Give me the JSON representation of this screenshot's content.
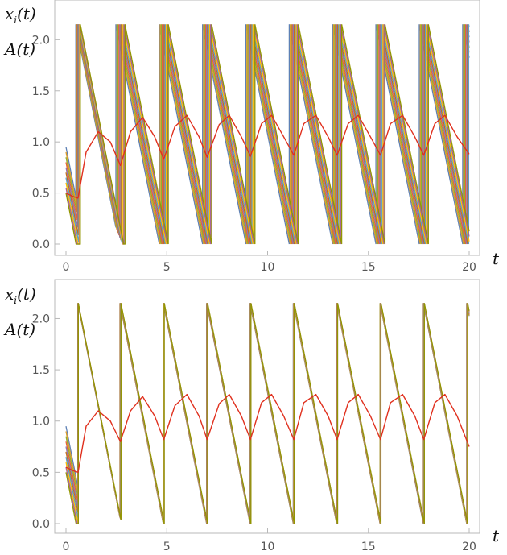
{
  "chart_data": [
    {
      "type": "line",
      "title": "",
      "ylabel_lines": [
        "x_i(t)",
        "A(t)"
      ],
      "xlabel": "t",
      "xlim": [
        0,
        20
      ],
      "ylim": [
        0,
        2.2
      ],
      "xticks": [
        "0",
        "5",
        "10",
        "15",
        "20"
      ],
      "xtick_values": [
        0,
        5,
        10,
        15,
        20
      ],
      "yticks": [
        "0.0",
        "0.5",
        "1.0",
        "1.5",
        "2.0"
      ],
      "ytick_values": [
        0,
        0.5,
        1.0,
        1.5,
        2.0
      ],
      "reset_times": [
        0.6,
        2.7,
        4.85,
        7.0,
        9.15,
        11.3,
        13.45,
        15.6,
        17.75,
        19.9
      ],
      "sawtooth_peak": 2.15,
      "sawtooth_slope": -1.0,
      "oscillator_phase_spread": 0.45,
      "oscillator_colors": [
        "#5e81b5",
        "#e19c24",
        "#8fb032",
        "#eb6235",
        "#8778b3",
        "#c56e1a",
        "#5d9ec7",
        "#ffbf00",
        "#a5609d",
        "#929600"
      ],
      "A_t": {
        "name": "",
        "color": "#e0301e",
        "x": [
          0,
          0.3,
          0.6,
          1.0,
          1.6,
          2.2,
          2.7,
          3.2,
          3.8,
          4.4,
          4.85,
          5.4,
          6.0,
          6.6,
          7.0,
          7.6,
          8.1,
          8.7,
          9.15,
          9.7,
          10.2,
          10.8,
          11.3,
          11.8,
          12.4,
          13.0,
          13.45,
          14.0,
          14.5,
          15.1,
          15.6,
          16.1,
          16.7,
          17.3,
          17.75,
          18.3,
          18.8,
          19.4,
          20.0
        ],
        "y": [
          0.5,
          0.47,
          0.45,
          0.9,
          1.1,
          1.0,
          0.77,
          1.1,
          1.24,
          1.05,
          0.83,
          1.15,
          1.26,
          1.05,
          0.85,
          1.17,
          1.26,
          1.05,
          0.86,
          1.18,
          1.26,
          1.05,
          0.87,
          1.18,
          1.26,
          1.05,
          0.87,
          1.18,
          1.26,
          1.05,
          0.87,
          1.18,
          1.26,
          1.05,
          0.87,
          1.18,
          1.26,
          1.05,
          0.88
        ]
      }
    },
    {
      "type": "line",
      "title": "",
      "ylabel_lines": [
        "x_i(t)",
        "A(t)"
      ],
      "xlabel": "t",
      "xlim": [
        0,
        20
      ],
      "ylim": [
        0,
        2.2
      ],
      "xticks": [
        "0",
        "5",
        "10",
        "15",
        "20"
      ],
      "xtick_values": [
        0,
        5,
        10,
        15,
        20
      ],
      "yticks": [
        "0.0",
        "0.5",
        "1.0",
        "1.5",
        "2.0"
      ],
      "ytick_values": [
        0,
        0.5,
        1.0,
        1.5,
        2.0
      ],
      "reset_times": [
        0.6,
        2.7,
        4.85,
        7.0,
        9.15,
        11.3,
        13.45,
        15.6,
        17.75,
        19.9
      ],
      "sawtooth_peak": 2.15,
      "sawtooth_slope": -1.0,
      "oscillator_phase_spread": 0.05,
      "oscillator_colors": [
        "#5e81b5",
        "#e19c24",
        "#8fb032",
        "#eb6235",
        "#8778b3",
        "#c56e1a",
        "#5d9ec7",
        "#ffbf00",
        "#a5609d",
        "#929600"
      ],
      "A_t": {
        "name": "",
        "color": "#e0301e",
        "x": [
          0,
          0.3,
          0.6,
          1.0,
          1.6,
          2.2,
          2.7,
          3.2,
          3.8,
          4.4,
          4.85,
          5.4,
          6.0,
          6.6,
          7.0,
          7.6,
          8.1,
          8.7,
          9.15,
          9.7,
          10.2,
          10.8,
          11.3,
          11.8,
          12.4,
          13.0,
          13.45,
          14.0,
          14.5,
          15.1,
          15.6,
          16.1,
          16.7,
          17.3,
          17.75,
          18.3,
          18.8,
          19.4,
          20.0
        ],
        "y": [
          0.55,
          0.52,
          0.5,
          0.95,
          1.1,
          1.0,
          0.8,
          1.1,
          1.24,
          1.05,
          0.82,
          1.15,
          1.26,
          1.05,
          0.82,
          1.17,
          1.26,
          1.05,
          0.82,
          1.18,
          1.26,
          1.05,
          0.82,
          1.18,
          1.26,
          1.05,
          0.82,
          1.18,
          1.26,
          1.05,
          0.82,
          1.18,
          1.26,
          1.05,
          0.82,
          1.18,
          1.26,
          1.05,
          0.75
        ]
      }
    }
  ]
}
